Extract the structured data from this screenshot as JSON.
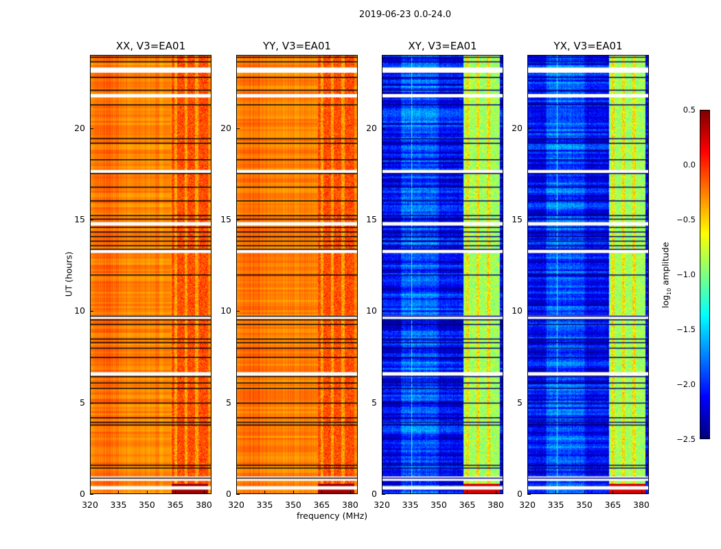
{
  "chart_data": {
    "type": "heatmap",
    "title": "2019-06-23 0.0-24.0",
    "xlabel": "frequency (MHz)",
    "ylabel": "UT (hours)",
    "xlim": [
      320,
      384
    ],
    "ylim": [
      0,
      24
    ],
    "xticks": [
      "320",
      "335",
      "350",
      "365",
      "380"
    ],
    "yticks": [
      "0",
      "5",
      "10",
      "15",
      "20"
    ],
    "panels": [
      {
        "title": "XX, V3=EA01",
        "base_level": -0.35,
        "band_level": -0.1
      },
      {
        "title": "YY, V3=EA01",
        "base_level": -0.35,
        "band_level": -0.1
      },
      {
        "title": "XY, V3=EA01",
        "base_level": -2.2,
        "band_level": -0.9
      },
      {
        "title": "YX, V3=EA01",
        "base_level": -2.2,
        "band_level": -0.9
      }
    ],
    "band_mhz": [
      363,
      380
    ],
    "flagged_hours": [
      0.32,
      0.8,
      0.85,
      6.55,
      9.65,
      13.25,
      14.75,
      17.6,
      21.75,
      23.1,
      23.2
    ],
    "black_line_hours": [
      0.9,
      1.45,
      1.6,
      3.8,
      3.95,
      4.2,
      5.0,
      5.8,
      6.1,
      6.45,
      7.5,
      8.0,
      8.3,
      8.5,
      9.3,
      9.55,
      9.75,
      12.0,
      13.4,
      13.6,
      13.85,
      14.1,
      14.35,
      14.6,
      15.05,
      15.25,
      16.05,
      16.8,
      17.55,
      18.3,
      19.2,
      19.45,
      21.3,
      22.1,
      22.8,
      23.65,
      23.9
    ],
    "colorbar": {
      "label": "log10 amplitude",
      "range": [
        -2.5,
        0.5
      ],
      "ticks": [
        "0.5",
        "0.0",
        "−0.5",
        "−1.0",
        "−1.5",
        "−2.0",
        "−2.5"
      ],
      "colormap": "jet"
    }
  }
}
